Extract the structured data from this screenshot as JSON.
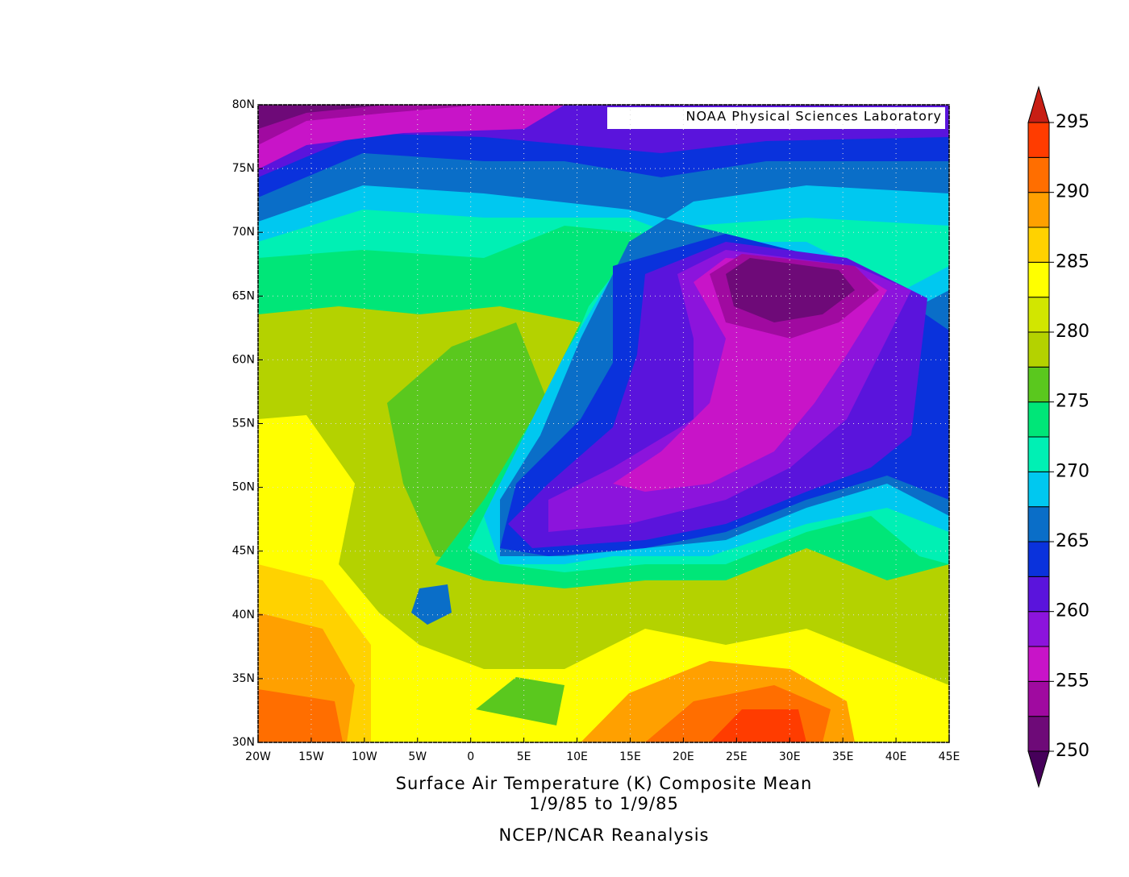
{
  "map": {
    "credit": "NOAA Physical Sciences Laboratory",
    "xlim": [
      -20,
      45
    ],
    "ylim": [
      30,
      80
    ],
    "xticks": [
      {
        "value": -20,
        "label": "20W"
      },
      {
        "value": -15,
        "label": "15W"
      },
      {
        "value": -10,
        "label": "10W"
      },
      {
        "value": -5,
        "label": "5W"
      },
      0,
      {
        "value": 5,
        "label": "5E"
      },
      {
        "value": 10,
        "label": "10E"
      },
      {
        "value": 15,
        "label": "15E"
      },
      {
        "value": 20,
        "label": "20E"
      },
      {
        "value": 25,
        "label": "25E"
      },
      {
        "value": 30,
        "label": "30E"
      },
      {
        "value": 35,
        "label": "35E"
      },
      {
        "value": 40,
        "label": "40E"
      },
      {
        "value": 45,
        "label": "45E"
      }
    ],
    "yticks": [
      {
        "value": 30,
        "label": "30N"
      },
      {
        "value": 35,
        "label": "35N"
      },
      {
        "value": 40,
        "label": "40N"
      },
      {
        "value": 45,
        "label": "45N"
      },
      {
        "value": 50,
        "label": "50N"
      },
      {
        "value": 55,
        "label": "55N"
      },
      {
        "value": 60,
        "label": "60N"
      },
      {
        "value": 65,
        "label": "65N"
      },
      {
        "value": 70,
        "label": "70N"
      },
      {
        "value": 75,
        "label": "75N"
      },
      {
        "value": 80,
        "label": "80N"
      }
    ],
    "grid": true,
    "title": "Surface Air Temperature (K) Composite Mean",
    "dates": "1/9/85  to 1/9/85",
    "source": "NCEP/NCAR Reanalysis"
  },
  "colorbar": {
    "lim": [
      250,
      295
    ],
    "ticks": [
      250,
      255,
      260,
      265,
      270,
      275,
      280,
      285,
      290,
      295
    ],
    "colors": [
      "#6e0a78",
      "#a00aa0",
      "#c814c8",
      "#8c14dc",
      "#5a14dc",
      "#0a32dc",
      "#0a6ec8",
      "#00c8f0",
      "#00f0b4",
      "#00e678",
      "#5ac81e",
      "#b4d200",
      "#d2e600",
      "#ffff00",
      "#ffd200",
      "#ffa000",
      "#ff6e00",
      "#ff3c00"
    ],
    "under_color": "#46005a",
    "over_color": "#c81e14"
  }
}
